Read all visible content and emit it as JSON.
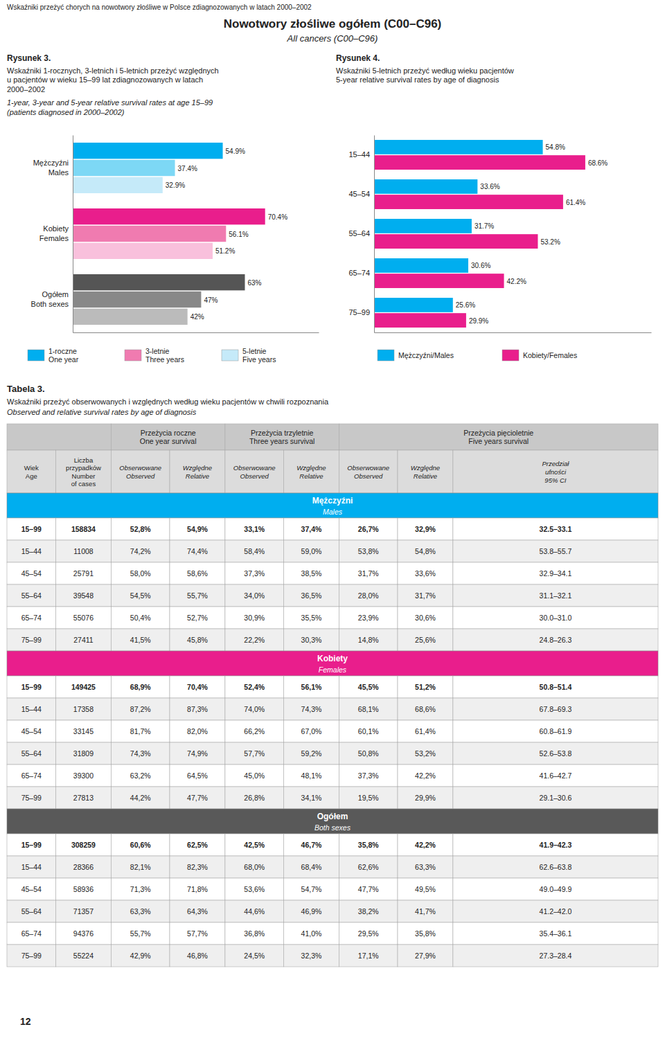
{
  "page_title": "Wskaźniki przeżyć chorych na nowotwory złośliwe w Polsce zdiagnozowanych w latach 2000–2002",
  "title": "Nowotwory złośliwe ogółem (C00–C96)",
  "subtitle": "All cancers (C00–C96)",
  "chart_data": [
    {
      "type": "bar",
      "orientation": "horizontal",
      "title": "Rysunek 3.",
      "subtitle": [
        "Wskaźniki 1-rocznych, 3-letnich i 5-letnich przeżyć względnych\nu pacjentów w wieku 15–99 lat zdiagnozowanych w latach\n2000–2002",
        "1-year, 3-year and 5-year relative survival rates at age 15–99\n(patients diagnosed in 2000–2002)"
      ],
      "categories": [
        "Mężczyźni\nMales",
        "Kobiety\nFemales",
        "Ogółem\nBoth sexes"
      ],
      "series": [
        {
          "name": "1-roczne\nOne year",
          "color": "#00AEEF",
          "colors": [
            "#00AEEF",
            "#E91E8C",
            "#555555"
          ],
          "values": [
            54.9,
            70.4,
            63.0
          ],
          "value_labels": [
            "54.9%",
            "70.4%",
            "63%"
          ]
        },
        {
          "name": "3-letnie\nThree years",
          "color": "#F07BB0",
          "colors": [
            "#7DD8F5",
            "#F07BB0",
            "#888888"
          ],
          "values": [
            37.4,
            56.1,
            47.0
          ],
          "value_labels": [
            "37.4%",
            "56.1%",
            "47%"
          ]
        },
        {
          "name": "5-letnie\nFive years",
          "color": "#C5EAF9",
          "colors": [
            "#C5EAF9",
            "#F9C0DC",
            "#BBBBBB"
          ],
          "values": [
            32.9,
            51.2,
            42.0
          ],
          "value_labels": [
            "32.9%",
            "51.2%",
            "42%"
          ]
        }
      ],
      "xlim": [
        0,
        90
      ],
      "data_labels": true,
      "tick_labels": "y",
      "legend": "bottom",
      "grid": false
    },
    {
      "type": "bar",
      "orientation": "horizontal",
      "title": "Rysunek 4.",
      "subtitle": [
        "Wskaźniki 5-letnich przeżyć według wieku pacjentów\n5-year relative survival rates by age of diagnosis"
      ],
      "categories": [
        "15–44",
        "45–54",
        "55–64",
        "65–74",
        "75–99"
      ],
      "series": [
        {
          "name": "Mężczyźni/Males",
          "color": "#00AEEF",
          "values": [
            54.8,
            33.6,
            31.7,
            30.6,
            25.6
          ],
          "value_labels": [
            "54.8%",
            "33.6%",
            "31.7%",
            "30.6%",
            "25.6%"
          ]
        },
        {
          "name": "Kobiety/Females",
          "color": "#E91E8C",
          "values": [
            68.6,
            61.4,
            53.2,
            42.2,
            29.9
          ],
          "value_labels": [
            "68.6%",
            "61.4%",
            "53.2%",
            "42.2%",
            "29.9%"
          ]
        }
      ],
      "xlim": [
        0,
        90
      ],
      "data_labels": true,
      "tick_labels": "y",
      "legend": "bottom",
      "grid": false
    }
  ],
  "table": {
    "title": "Tabela 3.",
    "subtitle": [
      "Wskaźniki przeżyć obserwowanych i względnych według wieku pacjentów w chwili rozpoznania",
      "Observed and relative survival rates by age of diagnosis"
    ],
    "group_headers": [
      "Przeżycia roczne\nOne year survival",
      "Przeżycia trzyletnie\nThree years survival",
      "Przeżycia pięcioletnie\nFive years survival"
    ],
    "columns": [
      "Wiek\nAge",
      "Liczba\nprzypadków\nNumber\nof cases",
      "Obserwowane\nObserved",
      "Względne\nRelative",
      "Obserwowane\nObserved",
      "Względne\nRelative",
      "Obserwowane\nObserved",
      "Względne\nRelative",
      "Przedział\nufności\n95% CI"
    ],
    "sections": [
      {
        "name": "Mężczyźni",
        "name_en": "Males",
        "color": "#00AEEF",
        "rows": [
          [
            "15–99",
            "158834",
            "52,8%",
            "54,9%",
            "33,1%",
            "37,4%",
            "26,7%",
            "32,9%",
            "32.5–33.1"
          ],
          [
            "15–44",
            "11008",
            "74,2%",
            "74,4%",
            "58,4%",
            "59,0%",
            "53,8%",
            "54,8%",
            "53.8–55.7"
          ],
          [
            "45–54",
            "25791",
            "58,0%",
            "58,6%",
            "37,3%",
            "38,5%",
            "31,7%",
            "33,6%",
            "32.9–34.1"
          ],
          [
            "55–64",
            "39548",
            "54,5%",
            "55,7%",
            "34,0%",
            "36,5%",
            "28,0%",
            "31,7%",
            "31.1–32.1"
          ],
          [
            "65–74",
            "55076",
            "50,4%",
            "52,7%",
            "30,9%",
            "35,5%",
            "23,9%",
            "30,6%",
            "30.0–31.0"
          ],
          [
            "75–99",
            "27411",
            "41,5%",
            "45,8%",
            "22,2%",
            "30,3%",
            "14,8%",
            "25,6%",
            "24.8–26.3"
          ]
        ]
      },
      {
        "name": "Kobiety",
        "name_en": "Females",
        "color": "#E91E8C",
        "rows": [
          [
            "15–99",
            "149425",
            "68,9%",
            "70,4%",
            "52,4%",
            "56,1%",
            "45,5%",
            "51,2%",
            "50.8–51.4"
          ],
          [
            "15–44",
            "17358",
            "87,2%",
            "87,3%",
            "74,0%",
            "74,3%",
            "68,1%",
            "68,6%",
            "67.8–69.3"
          ],
          [
            "45–54",
            "33145",
            "81,7%",
            "82,0%",
            "66,2%",
            "67,0%",
            "60,1%",
            "61,4%",
            "60.8–61.9"
          ],
          [
            "55–64",
            "31809",
            "74,3%",
            "74,9%",
            "57,7%",
            "59,2%",
            "50,8%",
            "53,2%",
            "52.6–53.8"
          ],
          [
            "65–74",
            "39300",
            "63,2%",
            "64,5%",
            "45,0%",
            "48,1%",
            "37,3%",
            "42,2%",
            "41.6–42.7"
          ],
          [
            "75–99",
            "27813",
            "44,2%",
            "47,7%",
            "26,8%",
            "34,1%",
            "19,5%",
            "29,9%",
            "29.1–30.6"
          ]
        ]
      },
      {
        "name": "Ogółem",
        "name_en": "Both sexes",
        "color": "#595959",
        "rows": [
          [
            "15–99",
            "308259",
            "60,6%",
            "62,5%",
            "42,5%",
            "46,7%",
            "35,8%",
            "42,2%",
            "41.9–42.3"
          ],
          [
            "15–44",
            "28366",
            "82,1%",
            "82,3%",
            "68,0%",
            "68,4%",
            "62,6%",
            "63,3%",
            "62.6–63.8"
          ],
          [
            "45–54",
            "58936",
            "71,3%",
            "71,8%",
            "53,6%",
            "54,7%",
            "47,7%",
            "49,5%",
            "49.0–49.9"
          ],
          [
            "55–64",
            "71357",
            "63,3%",
            "64,3%",
            "44,6%",
            "46,9%",
            "38,2%",
            "41,7%",
            "41.2–42.0"
          ],
          [
            "65–74",
            "94376",
            "55,7%",
            "57,7%",
            "36,8%",
            "41,0%",
            "29,5%",
            "35,8%",
            "35.4–36.1"
          ],
          [
            "75–99",
            "55224",
            "42,9%",
            "46,8%",
            "24,5%",
            "32,3%",
            "17,1%",
            "27,9%",
            "27.3–28.4"
          ]
        ]
      }
    ]
  },
  "page_number": "12"
}
